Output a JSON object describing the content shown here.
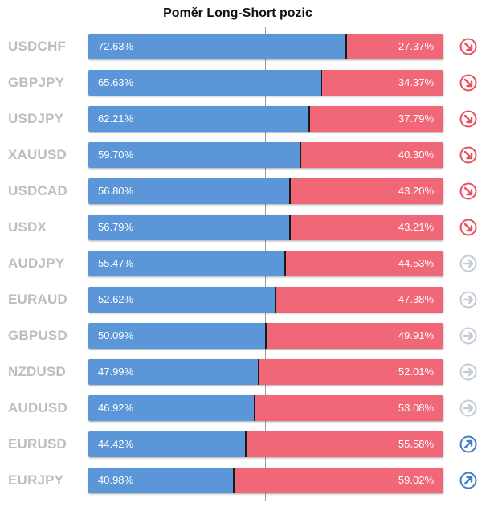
{
  "title": "Poměr Long-Short pozic",
  "colors": {
    "long": "#5b96d8",
    "short": "#f06877",
    "bearish_icon": "#e8505b",
    "neutral_icon": "#c3cbd8",
    "bullish_icon": "#3f7fca"
  },
  "chart_data": {
    "type": "bar",
    "subtype": "stacked-horizontal-100-percent",
    "title": "Poměr Long-Short pozic",
    "categories": [
      "USDCHF",
      "GBPJPY",
      "USDJPY",
      "XAUUSD",
      "USDCAD",
      "USDX",
      "AUDJPY",
      "EURAUD",
      "GBPUSD",
      "NZDUSD",
      "AUDUSD",
      "EURUSD",
      "EURJPY"
    ],
    "series": [
      {
        "values": [
          72.63,
          65.63,
          62.21,
          59.7,
          56.8,
          56.79,
          55.47,
          52.62,
          50.09,
          47.99,
          46.92,
          44.42,
          40.98
        ]
      },
      {
        "values": [
          27.37,
          34.37,
          37.79,
          40.3,
          43.2,
          43.21,
          44.53,
          47.38,
          49.91,
          52.01,
          53.08,
          55.58,
          59.02
        ]
      }
    ],
    "xlim": [
      0,
      100
    ],
    "reference_line": 50
  },
  "rows": [
    {
      "pair": "USDCHF",
      "long": "72.63%",
      "short": "27.37%",
      "long_value": 72.63,
      "signal": "bearish",
      "signal_icon": "arrow-down-right-icon"
    },
    {
      "pair": "GBPJPY",
      "long": "65.63%",
      "short": "34.37%",
      "long_value": 65.63,
      "signal": "bearish",
      "signal_icon": "arrow-down-right-icon"
    },
    {
      "pair": "USDJPY",
      "long": "62.21%",
      "short": "37.79%",
      "long_value": 62.21,
      "signal": "bearish",
      "signal_icon": "arrow-down-right-icon"
    },
    {
      "pair": "XAUUSD",
      "long": "59.70%",
      "short": "40.30%",
      "long_value": 59.7,
      "signal": "bearish",
      "signal_icon": "arrow-down-right-icon"
    },
    {
      "pair": "USDCAD",
      "long": "56.80%",
      "short": "43.20%",
      "long_value": 56.8,
      "signal": "bearish",
      "signal_icon": "arrow-down-right-icon"
    },
    {
      "pair": "USDX",
      "long": "56.79%",
      "short": "43.21%",
      "long_value": 56.79,
      "signal": "bearish",
      "signal_icon": "arrow-down-right-icon"
    },
    {
      "pair": "AUDJPY",
      "long": "55.47%",
      "short": "44.53%",
      "long_value": 55.47,
      "signal": "neutral",
      "signal_icon": "arrow-right-icon"
    },
    {
      "pair": "EURAUD",
      "long": "52.62%",
      "short": "47.38%",
      "long_value": 52.62,
      "signal": "neutral",
      "signal_icon": "arrow-right-icon"
    },
    {
      "pair": "GBPUSD",
      "long": "50.09%",
      "short": "49.91%",
      "long_value": 50.09,
      "signal": "neutral",
      "signal_icon": "arrow-right-icon"
    },
    {
      "pair": "NZDUSD",
      "long": "47.99%",
      "short": "52.01%",
      "long_value": 47.99,
      "signal": "neutral",
      "signal_icon": "arrow-right-icon"
    },
    {
      "pair": "AUDUSD",
      "long": "46.92%",
      "short": "53.08%",
      "long_value": 46.92,
      "signal": "neutral",
      "signal_icon": "arrow-right-icon"
    },
    {
      "pair": "EURUSD",
      "long": "44.42%",
      "short": "55.58%",
      "long_value": 44.42,
      "signal": "bullish",
      "signal_icon": "arrow-up-right-icon"
    },
    {
      "pair": "EURJPY",
      "long": "40.98%",
      "short": "59.02%",
      "long_value": 40.98,
      "signal": "bullish",
      "signal_icon": "arrow-up-right-icon"
    }
  ]
}
